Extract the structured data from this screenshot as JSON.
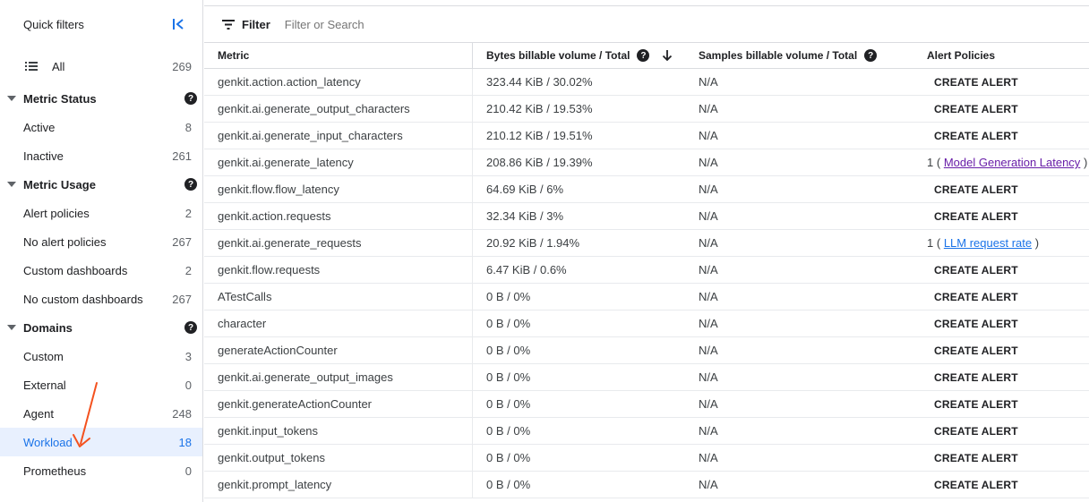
{
  "sidebar": {
    "title": "Quick filters",
    "all": {
      "label": "All",
      "count": "269"
    },
    "sections": [
      {
        "label": "Metric Status",
        "items": [
          {
            "label": "Active",
            "count": "8"
          },
          {
            "label": "Inactive",
            "count": "261"
          }
        ]
      },
      {
        "label": "Metric Usage",
        "items": [
          {
            "label": "Alert policies",
            "count": "2"
          },
          {
            "label": "No alert policies",
            "count": "267"
          },
          {
            "label": "Custom dashboards",
            "count": "2"
          },
          {
            "label": "No custom dashboards",
            "count": "267"
          }
        ]
      },
      {
        "label": "Domains",
        "items": [
          {
            "label": "Custom",
            "count": "3"
          },
          {
            "label": "External",
            "count": "0"
          },
          {
            "label": "Agent",
            "count": "248"
          },
          {
            "label": "Workload",
            "count": "18"
          },
          {
            "label": "Prometheus",
            "count": "0"
          }
        ]
      }
    ]
  },
  "filter": {
    "label": "Filter",
    "placeholder": "Filter or Search"
  },
  "table": {
    "headers": {
      "metric": "Metric",
      "bytes": "Bytes billable volume / Total",
      "samples": "Samples billable volume / Total",
      "alerts": "Alert Policies"
    },
    "create_alert_label": "CREATE ALERT",
    "rows": [
      {
        "metric": "genkit.action.action_latency",
        "bytes": "323.44 KiB / 30.02%",
        "samples": "N/A",
        "alert": null
      },
      {
        "metric": "genkit.ai.generate_output_characters",
        "bytes": "210.42 KiB / 19.53%",
        "samples": "N/A",
        "alert": null
      },
      {
        "metric": "genkit.ai.generate_input_characters",
        "bytes": "210.12 KiB / 19.51%",
        "samples": "N/A",
        "alert": null
      },
      {
        "metric": "genkit.ai.generate_latency",
        "bytes": "208.86 KiB / 19.39%",
        "samples": "N/A",
        "alert": {
          "count": "1",
          "open": "(",
          "name": "Model Generation Latency",
          "close": ")",
          "visited": true
        }
      },
      {
        "metric": "genkit.flow.flow_latency",
        "bytes": "64.69 KiB / 6%",
        "samples": "N/A",
        "alert": null
      },
      {
        "metric": "genkit.action.requests",
        "bytes": "32.34 KiB / 3%",
        "samples": "N/A",
        "alert": null
      },
      {
        "metric": "genkit.ai.generate_requests",
        "bytes": "20.92 KiB / 1.94%",
        "samples": "N/A",
        "alert": {
          "count": "1",
          "open": "(",
          "name": "LLM request rate",
          "close": ")",
          "visited": false
        }
      },
      {
        "metric": "genkit.flow.requests",
        "bytes": "6.47 KiB / 0.6%",
        "samples": "N/A",
        "alert": null
      },
      {
        "metric": "ATestCalls",
        "bytes": "0 B / 0%",
        "samples": "N/A",
        "alert": null
      },
      {
        "metric": "character",
        "bytes": "0 B / 0%",
        "samples": "N/A",
        "alert": null
      },
      {
        "metric": "generateActionCounter",
        "bytes": "0 B / 0%",
        "samples": "N/A",
        "alert": null
      },
      {
        "metric": "genkit.ai.generate_output_images",
        "bytes": "0 B / 0%",
        "samples": "N/A",
        "alert": null
      },
      {
        "metric": "genkit.generateActionCounter",
        "bytes": "0 B / 0%",
        "samples": "N/A",
        "alert": null
      },
      {
        "metric": "genkit.input_tokens",
        "bytes": "0 B / 0%",
        "samples": "N/A",
        "alert": null
      },
      {
        "metric": "genkit.output_tokens",
        "bytes": "0 B / 0%",
        "samples": "N/A",
        "alert": null
      },
      {
        "metric": "genkit.prompt_latency",
        "bytes": "0 B / 0%",
        "samples": "N/A",
        "alert": null
      }
    ]
  },
  "selected_item": "Workload",
  "colors": {
    "accent": "#1a73e8",
    "visited_link": "#681da8",
    "annotation_arrow": "#f4511e",
    "selected_bg": "#e8f0fe"
  },
  "icons": {
    "collapse": "collapse-left-icon",
    "list": "list-icon",
    "help": "help-icon",
    "filter": "filter-icon",
    "sort": "arrow-down-icon"
  }
}
